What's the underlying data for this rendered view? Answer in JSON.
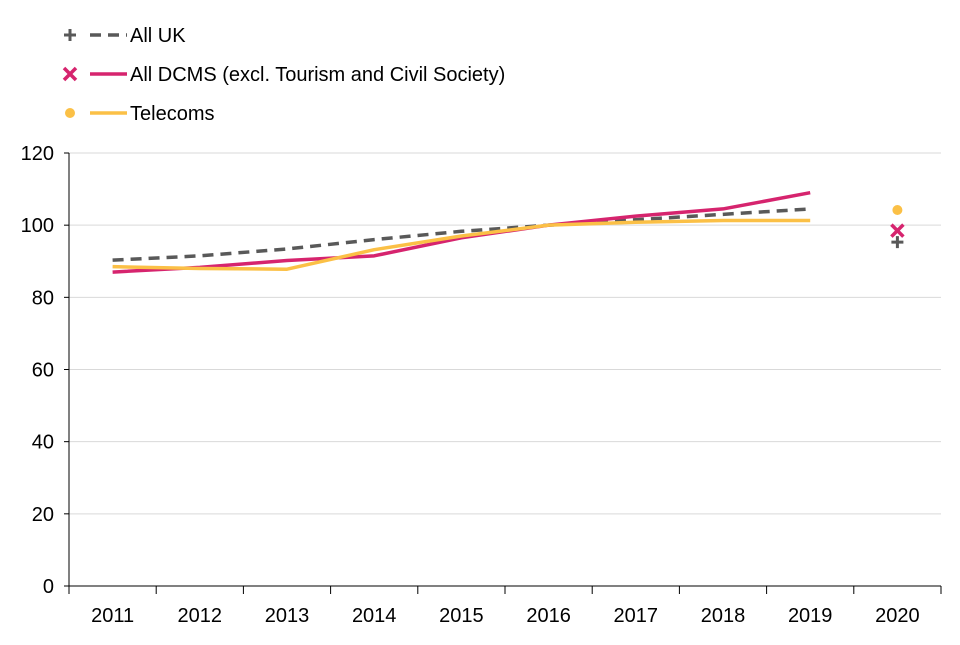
{
  "chart_data": {
    "type": "line",
    "title": "",
    "xlabel": "",
    "ylabel": "",
    "x": [
      "2011",
      "2012",
      "2013",
      "2014",
      "2015",
      "2016",
      "2017",
      "2018",
      "2019",
      "2020"
    ],
    "ylim": [
      0,
      120
    ],
    "yticks": [
      0,
      20,
      40,
      60,
      80,
      100,
      120
    ],
    "grid": true,
    "legend_position": "top-left",
    "series": [
      {
        "name": "All UK",
        "color": "#595959",
        "line_style": "dashed",
        "marker": "plus",
        "values": [
          90.3,
          91.5,
          93.4,
          96.0,
          98.3,
          100.0,
          101.5,
          103.0,
          104.5,
          null
        ],
        "point_2020": 95.3
      },
      {
        "name": "All DCMS (excl. Tourism and Civil Society)",
        "color": "#d6246e",
        "line_style": "solid",
        "marker": "cross",
        "values": [
          87.0,
          88.3,
          90.2,
          91.5,
          96.5,
          100.0,
          102.5,
          104.5,
          109.0,
          null
        ],
        "point_2020": 98.5
      },
      {
        "name": "Telecoms",
        "color": "#fbc046",
        "line_style": "solid",
        "marker": "dot",
        "values": [
          88.5,
          88.0,
          87.8,
          93.2,
          97.0,
          100.0,
          100.8,
          101.3,
          101.3,
          null
        ],
        "point_2020": 104.2
      }
    ]
  }
}
